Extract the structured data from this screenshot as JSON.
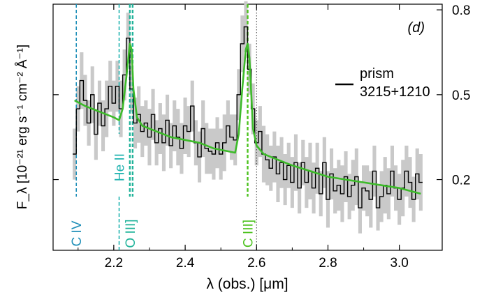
{
  "chart_data": {
    "type": "line",
    "panel_label": "(d)",
    "xlabel": "λ (obs.) [μm]",
    "ylabel_left": "F_λ [10⁻²¹ erg s⁻¹ cm⁻² Å⁻¹]",
    "xlim": [
      2.03,
      3.12
    ],
    "ylim": [
      -0.05,
      0.82
    ],
    "x_ticks": [
      2.2,
      2.4,
      2.6,
      2.8,
      3.0
    ],
    "x_tick_labels": [
      "2.2",
      "2.4",
      "2.6",
      "2.8",
      "3.0"
    ],
    "y_ticks_left": [
      0.2,
      0.5
    ],
    "y_ticks_right": [
      0.2,
      0.5,
      0.8
    ],
    "y_tick_labels_right": [
      "0.2",
      "0.5",
      "0.8"
    ],
    "legend": {
      "placement": "right",
      "entries": [
        {
          "label_line1": "prism",
          "label_line2": "3215+1210",
          "color": "#000000"
        }
      ]
    },
    "colors": {
      "data": "#000000",
      "error_band": "#c9c9c9",
      "model": "#3dbb2a",
      "line_civ": "#1f8fb8",
      "line_heii": "#20b3b0",
      "line_oiii": "#20b39a",
      "line_ciii": "#4cc21e",
      "reference": "#333333"
    },
    "emission_lines": [
      {
        "label": "C IV",
        "x": 2.095,
        "color_key": "line_civ"
      },
      {
        "label": "He II",
        "x": 2.215,
        "color_key": "line_heii"
      },
      {
        "label": "O III]",
        "x": 2.245,
        "color_key": "line_oiii"
      },
      {
        "label": "C III]",
        "x": 2.575,
        "color_key": "line_ciii"
      }
    ],
    "reference_line": {
      "x": 2.6
    },
    "series": [
      {
        "style": "step",
        "x": [
          2.09,
          2.1,
          2.11,
          2.12,
          2.13,
          2.14,
          2.15,
          2.16,
          2.17,
          2.18,
          2.19,
          2.2,
          2.21,
          2.22,
          2.23,
          2.24,
          2.25,
          2.26,
          2.27,
          2.28,
          2.29,
          2.3,
          2.31,
          2.32,
          2.33,
          2.34,
          2.35,
          2.36,
          2.37,
          2.38,
          2.39,
          2.4,
          2.41,
          2.42,
          2.43,
          2.44,
          2.45,
          2.46,
          2.47,
          2.48,
          2.49,
          2.5,
          2.51,
          2.52,
          2.53,
          2.54,
          2.55,
          2.56,
          2.57,
          2.58,
          2.59,
          2.6,
          2.61,
          2.62,
          2.63,
          2.64,
          2.65,
          2.66,
          2.67,
          2.68,
          2.69,
          2.7,
          2.71,
          2.72,
          2.73,
          2.74,
          2.75,
          2.76,
          2.77,
          2.78,
          2.79,
          2.8,
          2.81,
          2.82,
          2.83,
          2.84,
          2.85,
          2.86,
          2.87,
          2.88,
          2.89,
          2.9,
          2.91,
          2.92,
          2.93,
          2.94,
          2.95,
          2.96,
          2.97,
          2.98,
          2.99,
          3.0,
          3.01,
          3.02,
          3.03,
          3.04,
          3.05,
          3.06
        ],
        "y": [
          0.29,
          0.45,
          0.55,
          0.48,
          0.4,
          0.5,
          0.36,
          0.47,
          0.39,
          0.45,
          0.53,
          0.47,
          0.53,
          0.45,
          0.57,
          0.7,
          0.52,
          0.4,
          0.43,
          0.37,
          0.4,
          0.35,
          0.43,
          0.33,
          0.38,
          0.33,
          0.41,
          0.32,
          0.39,
          0.35,
          0.31,
          0.39,
          0.37,
          0.46,
          0.33,
          0.28,
          0.38,
          0.31,
          0.3,
          0.29,
          0.33,
          0.29,
          0.33,
          0.39,
          0.35,
          0.34,
          0.5,
          0.68,
          0.74,
          0.59,
          0.45,
          0.33,
          0.37,
          0.29,
          0.27,
          0.24,
          0.28,
          0.22,
          0.26,
          0.2,
          0.25,
          0.19,
          0.26,
          0.17,
          0.26,
          0.19,
          0.23,
          0.17,
          0.24,
          0.15,
          0.26,
          0.13,
          0.22,
          0.16,
          0.18,
          0.15,
          0.21,
          0.14,
          0.18,
          0.21,
          0.1,
          0.17,
          0.16,
          0.13,
          0.23,
          0.1,
          0.14,
          0.18,
          0.15,
          0.23,
          0.17,
          0.13,
          0.17,
          0.23,
          0.19,
          0.13,
          0.22,
          0.19
        ],
        "err": [
          0.09,
          0.08,
          0.1,
          0.09,
          0.08,
          0.1,
          0.09,
          0.08,
          0.09,
          0.1,
          0.09,
          0.08,
          0.09,
          0.1,
          0.09,
          0.09,
          0.08,
          0.09,
          0.1,
          0.09,
          0.08,
          0.1,
          0.09,
          0.08,
          0.09,
          0.1,
          0.09,
          0.08,
          0.09,
          0.1,
          0.09,
          0.1,
          0.09,
          0.09,
          0.08,
          0.09,
          0.1,
          0.09,
          0.08,
          0.09,
          0.09,
          0.09,
          0.1,
          0.09,
          0.08,
          0.09,
          0.09,
          0.1,
          0.09,
          0.09,
          0.09,
          0.08,
          0.09,
          0.1,
          0.09,
          0.08,
          0.09,
          0.1,
          0.09,
          0.09,
          0.08,
          0.09,
          0.1,
          0.09,
          0.08,
          0.09,
          0.1,
          0.09,
          0.09,
          0.08,
          0.09,
          0.1,
          0.09,
          0.08,
          0.09,
          0.1,
          0.09,
          0.08,
          0.09,
          0.1,
          0.09,
          0.08,
          0.09,
          0.1,
          0.09,
          0.08,
          0.09,
          0.1,
          0.09,
          0.09,
          0.08,
          0.09,
          0.1,
          0.09,
          0.09,
          0.08,
          0.09,
          0.1
        ]
      },
      {
        "style": "model",
        "x": [
          2.09,
          2.12,
          2.16,
          2.2,
          2.215,
          2.225,
          2.235,
          2.245,
          2.25,
          2.255,
          2.265,
          2.28,
          2.32,
          2.36,
          2.4,
          2.44,
          2.48,
          2.52,
          2.54,
          2.55,
          2.56,
          2.57,
          2.575,
          2.58,
          2.59,
          2.6,
          2.62,
          2.66,
          2.7,
          2.75,
          2.8,
          2.85,
          2.9,
          2.95,
          3.0,
          3.06
        ],
        "y": [
          0.48,
          0.46,
          0.44,
          0.42,
          0.41,
          0.45,
          0.56,
          0.68,
          0.66,
          0.52,
          0.42,
          0.39,
          0.37,
          0.35,
          0.34,
          0.33,
          0.31,
          0.3,
          0.295,
          0.36,
          0.52,
          0.66,
          0.68,
          0.63,
          0.38,
          0.32,
          0.29,
          0.27,
          0.25,
          0.23,
          0.21,
          0.2,
          0.19,
          0.18,
          0.17,
          0.15
        ]
      }
    ]
  }
}
